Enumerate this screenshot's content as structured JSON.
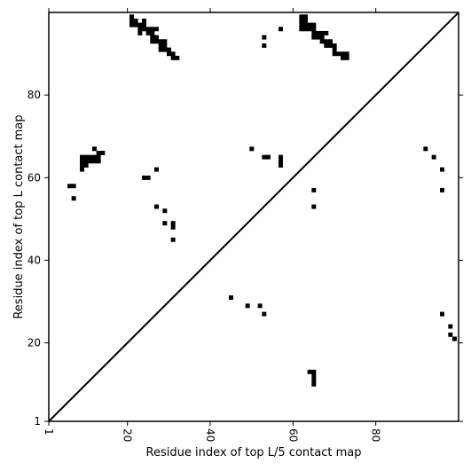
{
  "chart_data": {
    "type": "heatmap",
    "title": "",
    "xlabel": "Residue index of top L/5 contact map",
    "ylabel": "Residue index of top L contact map",
    "xlim": [
      1,
      100
    ],
    "ylim": [
      1,
      100
    ],
    "x_ticks": [
      1,
      20,
      40,
      60,
      80
    ],
    "y_ticks": [
      1,
      20,
      40,
      60,
      80
    ],
    "x_tick_labels": [
      "1",
      "20",
      "40",
      "60",
      "80"
    ],
    "y_tick_labels": [
      "1",
      "20",
      "40",
      "60",
      "80"
    ],
    "x_tick_rotation": "90",
    "diagonal": true,
    "grid": false,
    "legend": "none",
    "colors": {
      "contact": "#000000",
      "background": "#ffffff"
    },
    "upper_left_contacts": [
      [
        21,
        99
      ],
      [
        21,
        98
      ],
      [
        22,
        98
      ],
      [
        22,
        97
      ],
      [
        21,
        97
      ],
      [
        23,
        97
      ],
      [
        24,
        98
      ],
      [
        24,
        97
      ],
      [
        24,
        96
      ],
      [
        23,
        96
      ],
      [
        23,
        95
      ],
      [
        25,
        96
      ],
      [
        25,
        95
      ],
      [
        26,
        96
      ],
      [
        26,
        95
      ],
      [
        27,
        96
      ],
      [
        26,
        94
      ],
      [
        27,
        94
      ],
      [
        26,
        93
      ],
      [
        27,
        93
      ],
      [
        28,
        93
      ],
      [
        28,
        92
      ],
      [
        29,
        93
      ],
      [
        29,
        92
      ],
      [
        28,
        91
      ],
      [
        29,
        91
      ],
      [
        30,
        91
      ],
      [
        30,
        90
      ],
      [
        31,
        90
      ],
      [
        31,
        89
      ],
      [
        32,
        89
      ],
      [
        53,
        94
      ],
      [
        53,
        92
      ],
      [
        57,
        96
      ],
      [
        62,
        99
      ],
      [
        63,
        99
      ],
      [
        62,
        98
      ],
      [
        63,
        98
      ],
      [
        62,
        97
      ],
      [
        63,
        97
      ],
      [
        64,
        97
      ],
      [
        62,
        96
      ],
      [
        63,
        96
      ],
      [
        64,
        96
      ],
      [
        65,
        97
      ],
      [
        65,
        96
      ],
      [
        65,
        95
      ],
      [
        66,
        95
      ],
      [
        65,
        94
      ],
      [
        66,
        94
      ],
      [
        67,
        94
      ],
      [
        67,
        95
      ],
      [
        68,
        95
      ],
      [
        67,
        93
      ],
      [
        68,
        93
      ],
      [
        69,
        93
      ],
      [
        68,
        92
      ],
      [
        69,
        92
      ],
      [
        70,
        92
      ],
      [
        70,
        91
      ],
      [
        70,
        90
      ],
      [
        71,
        90
      ],
      [
        72,
        90
      ],
      [
        73,
        90
      ],
      [
        72,
        89
      ],
      [
        73,
        89
      ],
      [
        50,
        67
      ],
      [
        53,
        65
      ],
      [
        54,
        65
      ],
      [
        57,
        65
      ],
      [
        57,
        64
      ],
      [
        57,
        63
      ],
      [
        65,
        57
      ],
      [
        65,
        53
      ],
      [
        9,
        65
      ],
      [
        10,
        65
      ],
      [
        11,
        65
      ],
      [
        12,
        65
      ],
      [
        9,
        64
      ],
      [
        10,
        64
      ],
      [
        11,
        64
      ],
      [
        12,
        64
      ],
      [
        9,
        63
      ],
      [
        10,
        63
      ],
      [
        9,
        62
      ],
      [
        12,
        67
      ],
      [
        13,
        66
      ],
      [
        14,
        66
      ],
      [
        13,
        65
      ],
      [
        13,
        64
      ],
      [
        6,
        58
      ],
      [
        7,
        58
      ],
      [
        7,
        55
      ],
      [
        24,
        60
      ],
      [
        25,
        60
      ],
      [
        27,
        62
      ],
      [
        27,
        53
      ],
      [
        29,
        52
      ],
      [
        29,
        49
      ],
      [
        31,
        49
      ],
      [
        31,
        48
      ],
      [
        31,
        45
      ],
      [
        92,
        67
      ],
      [
        94,
        65
      ],
      [
        96,
        62
      ],
      [
        96,
        57
      ]
    ],
    "lower_right_contacts": [
      [
        45,
        31
      ],
      [
        49,
        29
      ],
      [
        52,
        29
      ],
      [
        53,
        27
      ],
      [
        64,
        13
      ],
      [
        65,
        13
      ],
      [
        65,
        12
      ],
      [
        65,
        11
      ],
      [
        65,
        10
      ],
      [
        96,
        27
      ],
      [
        98,
        24
      ],
      [
        98,
        22
      ],
      [
        99,
        21
      ]
    ]
  }
}
